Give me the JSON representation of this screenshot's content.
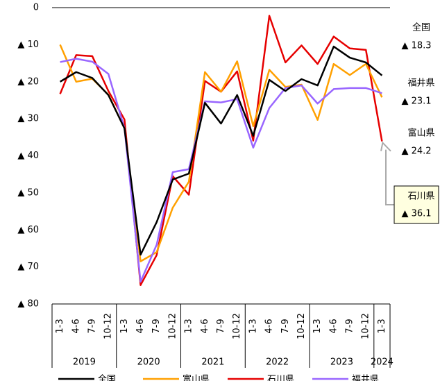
{
  "chart_data": {
    "type": "line",
    "categories": [
      "1-3",
      "4-6",
      "7-9",
      "10-12",
      "1-3",
      "4-6",
      "7-9",
      "10-12",
      "1-3",
      "4-6",
      "7-9",
      "10-12",
      "1-3",
      "4-6",
      "7-9",
      "10-12",
      "1-3",
      "4-6",
      "7-9",
      "10-12",
      "1-3"
    ],
    "year_labels": [
      "2019",
      null,
      null,
      null,
      "2020",
      null,
      null,
      null,
      "2021",
      null,
      null,
      null,
      "2022",
      null,
      null,
      null,
      "2023",
      null,
      null,
      null,
      "2024"
    ],
    "ylim": [
      0,
      -80
    ],
    "yticks": [
      0,
      {
        "value": -10,
        "label": "▲ 10"
      },
      {
        "value": -20,
        "label": "▲ 20"
      },
      {
        "value": -30,
        "label": "▲ 30"
      },
      {
        "value": -40,
        "label": "▲ 40"
      },
      {
        "value": -50,
        "label": "▲ 50"
      },
      {
        "value": -60,
        "label": "▲ 60"
      },
      {
        "value": -70,
        "label": "▲ 70"
      },
      {
        "value": -80,
        "label": "▲ 80"
      }
    ],
    "series": [
      {
        "name": "全国",
        "color": "#000000",
        "values": [
          -20,
          -17.4,
          -19,
          -23.6,
          -32.6,
          -66.7,
          -57.9,
          -46.4,
          -44.8,
          -25.7,
          -31.3,
          -23.6,
          -34.6,
          -19.5,
          -22.5,
          -19.3,
          -21,
          -10.5,
          -13.5,
          -14.8,
          -18.3
        ],
        "value_labels": [
          null,
          null,
          null,
          null,
          null,
          null,
          null,
          null,
          null,
          null,
          null,
          null,
          null,
          null,
          null,
          null,
          null,
          null,
          null,
          null,
          "▲ 18.3"
        ]
      },
      {
        "name": "富山県",
        "color": "#ffa000",
        "values": [
          -10,
          -20,
          -19.2,
          -23.5,
          -32.6,
          -68.5,
          -66,
          -54,
          -47,
          -17.4,
          -22.7,
          -14.5,
          -32,
          -16.8,
          -21.4,
          -20.8,
          -30.3,
          -15.2,
          -18.2,
          -15.2,
          -24.2
        ],
        "value_labels": [
          null,
          null,
          null,
          null,
          null,
          null,
          null,
          null,
          null,
          null,
          null,
          null,
          null,
          null,
          null,
          null,
          null,
          null,
          null,
          null,
          "▲ 24.2"
        ]
      },
      {
        "name": "石川県",
        "color": "#e60000",
        "values": [
          -23.3,
          -12.8,
          -13.1,
          -22.5,
          -30.2,
          -74.9,
          -66.8,
          -45.5,
          -50.5,
          -19.8,
          -22.7,
          -17.2,
          -35.9,
          -2.2,
          -14.8,
          -10.2,
          -15.2,
          -7.8,
          -11,
          -11.4,
          -36.1
        ],
        "value_labels": [
          null,
          null,
          null,
          null,
          null,
          null,
          null,
          null,
          null,
          null,
          null,
          null,
          null,
          null,
          null,
          null,
          null,
          null,
          null,
          null,
          "▲ 36.1"
        ]
      },
      {
        "name": "福井県",
        "color": "#9966ff",
        "values": [
          -14.7,
          -13.8,
          -14.6,
          -17.9,
          -32.6,
          -74,
          -64,
          -44.4,
          -43.6,
          -25.3,
          -25.6,
          -24.7,
          -37.8,
          -27.1,
          -21.7,
          -21,
          -25.9,
          -22,
          -21.7,
          -21.7,
          -23.1
        ],
        "value_labels": [
          null,
          null,
          null,
          null,
          null,
          null,
          null,
          null,
          null,
          null,
          null,
          null,
          null,
          null,
          null,
          null,
          null,
          null,
          null,
          null,
          "▲ 23.1"
        ]
      }
    ]
  }
}
